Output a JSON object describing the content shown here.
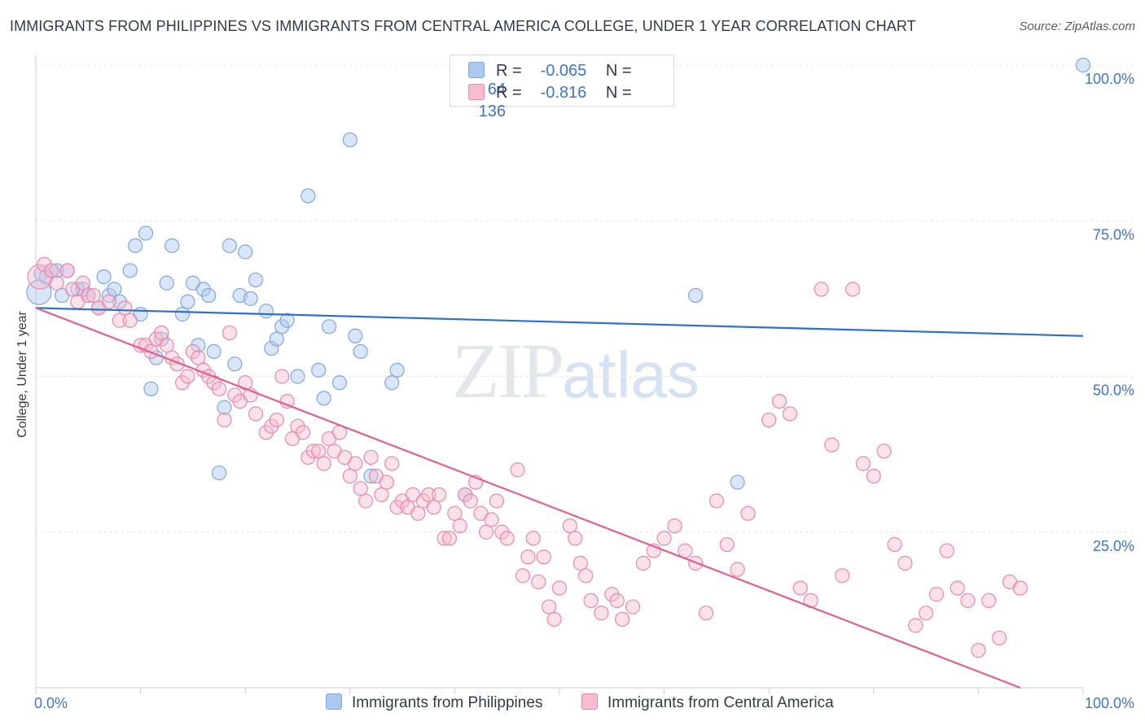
{
  "chart_data": {
    "type": "scatter",
    "title": "IMMIGRANTS FROM PHILIPPINES VS IMMIGRANTS FROM CENTRAL AMERICA COLLEGE, UNDER 1 YEAR CORRELATION CHART",
    "source": "Source: ZipAtlas.com",
    "xlabel": "",
    "ylabel": "College, Under 1 year",
    "xlim": [
      0,
      100
    ],
    "ylim": [
      0,
      100
    ],
    "x_tick_labels": [
      "0.0%",
      "100.0%"
    ],
    "y_tick_labels": [
      "25.0%",
      "50.0%",
      "75.0%",
      "100.0%"
    ],
    "y_ticks": [
      25,
      50,
      75,
      100
    ],
    "grid": true,
    "legend_placement": "bottom-center",
    "watermark": {
      "zip": "ZIP",
      "atlas": "atlas"
    },
    "stats": [
      {
        "r_label": "R =",
        "r_value": "-0.065",
        "n_label": "N =",
        "n_value": "64",
        "color": "#aac8f0"
      },
      {
        "r_label": "R =",
        "r_value": "-0.816",
        "n_label": "N =",
        "n_value": "136",
        "color": "#f7bcd0"
      }
    ],
    "series": [
      {
        "name": "Immigrants from Philippines",
        "color": "#7fa6e0",
        "fill": "#aac8f0",
        "line_color": "#2f6fcf",
        "trend": {
          "x0": 0,
          "y0": 61.0,
          "x1": 100,
          "y1": 56.5
        },
        "points": [
          [
            0.3,
            63.5
          ],
          [
            0.5,
            66.5
          ],
          [
            1,
            66
          ],
          [
            1.5,
            67
          ],
          [
            2,
            67
          ],
          [
            2.5,
            63
          ],
          [
            3,
            67
          ],
          [
            4,
            64
          ],
          [
            4.5,
            64
          ],
          [
            5,
            63
          ],
          [
            6,
            61
          ],
          [
            6.5,
            66
          ],
          [
            7,
            63
          ],
          [
            7.5,
            64
          ],
          [
            8,
            62
          ],
          [
            9,
            67
          ],
          [
            9.5,
            71
          ],
          [
            10,
            60
          ],
          [
            10.5,
            73
          ],
          [
            11,
            48
          ],
          [
            11.5,
            53
          ],
          [
            12,
            56
          ],
          [
            12.5,
            65
          ],
          [
            13,
            71
          ],
          [
            14,
            60
          ],
          [
            14.5,
            62
          ],
          [
            15,
            65
          ],
          [
            15.5,
            55
          ],
          [
            16,
            64
          ],
          [
            16.5,
            63
          ],
          [
            17,
            54
          ],
          [
            17.5,
            34.5
          ],
          [
            18,
            45
          ],
          [
            18.5,
            71
          ],
          [
            19,
            52
          ],
          [
            19.5,
            63
          ],
          [
            20,
            70
          ],
          [
            20.5,
            62.5
          ],
          [
            21,
            65.5
          ],
          [
            22,
            60.5
          ],
          [
            22.5,
            54.5
          ],
          [
            23,
            56
          ],
          [
            23.5,
            58
          ],
          [
            24,
            59
          ],
          [
            25,
            50
          ],
          [
            26,
            79
          ],
          [
            27,
            51
          ],
          [
            27.5,
            46.5
          ],
          [
            28,
            58
          ],
          [
            29,
            49
          ],
          [
            30,
            88
          ],
          [
            30.5,
            56.5
          ],
          [
            31,
            54
          ],
          [
            32,
            34
          ],
          [
            34,
            49
          ],
          [
            34.5,
            51
          ],
          [
            41,
            31
          ],
          [
            63,
            63
          ],
          [
            67,
            33
          ],
          [
            100,
            100
          ]
        ]
      },
      {
        "name": "Immigrants from Central America",
        "color": "#e888a8",
        "fill": "#f7bcd0",
        "line_color": "#e0608e",
        "trend": {
          "x0": 0,
          "y0": 61.0,
          "x1": 94,
          "y1": 0
        },
        "points": [
          [
            0.4,
            66
          ],
          [
            0.8,
            68
          ],
          [
            1.5,
            67
          ],
          [
            2,
            65
          ],
          [
            3,
            67
          ],
          [
            3.5,
            64
          ],
          [
            4,
            62
          ],
          [
            4.5,
            65
          ],
          [
            5,
            63
          ],
          [
            5.5,
            63
          ],
          [
            6,
            61
          ],
          [
            7,
            62
          ],
          [
            8,
            59
          ],
          [
            8.5,
            61
          ],
          [
            9,
            59
          ],
          [
            10,
            55
          ],
          [
            10.5,
            55
          ],
          [
            11,
            54
          ],
          [
            11.5,
            56
          ],
          [
            12,
            57
          ],
          [
            12.5,
            55
          ],
          [
            13,
            53
          ],
          [
            13.5,
            52
          ],
          [
            14,
            49
          ],
          [
            14.5,
            50
          ],
          [
            15,
            54
          ],
          [
            15.5,
            53
          ],
          [
            16,
            51
          ],
          [
            16.5,
            50
          ],
          [
            17,
            49
          ],
          [
            17.5,
            48
          ],
          [
            18,
            43
          ],
          [
            18.5,
            57
          ],
          [
            19,
            47
          ],
          [
            19.5,
            46
          ],
          [
            20,
            49
          ],
          [
            20.5,
            47
          ],
          [
            21,
            44
          ],
          [
            22,
            41
          ],
          [
            22.5,
            42
          ],
          [
            23,
            43
          ],
          [
            23.5,
            50
          ],
          [
            24,
            46
          ],
          [
            24.5,
            40
          ],
          [
            25,
            42
          ],
          [
            25.5,
            41
          ],
          [
            26,
            37
          ],
          [
            26.5,
            38
          ],
          [
            27,
            38
          ],
          [
            27.5,
            36
          ],
          [
            28,
            40
          ],
          [
            28.5,
            38
          ],
          [
            29,
            41
          ],
          [
            29.5,
            37
          ],
          [
            30,
            34
          ],
          [
            30.5,
            36
          ],
          [
            31,
            32
          ],
          [
            31.5,
            30
          ],
          [
            32,
            37
          ],
          [
            32.5,
            34
          ],
          [
            33,
            31
          ],
          [
            33.5,
            33
          ],
          [
            34,
            36
          ],
          [
            34.5,
            29
          ],
          [
            35,
            30
          ],
          [
            35.5,
            29
          ],
          [
            36,
            31
          ],
          [
            36.5,
            28
          ],
          [
            37,
            30
          ],
          [
            37.5,
            31
          ],
          [
            38,
            29
          ],
          [
            38.5,
            31
          ],
          [
            39,
            24
          ],
          [
            39.5,
            24
          ],
          [
            40,
            28
          ],
          [
            40.5,
            26
          ],
          [
            41,
            31
          ],
          [
            41.5,
            30
          ],
          [
            42,
            33
          ],
          [
            42.5,
            28
          ],
          [
            43,
            25
          ],
          [
            43.5,
            27
          ],
          [
            44,
            30
          ],
          [
            44.5,
            25
          ],
          [
            45,
            24
          ],
          [
            46,
            35
          ],
          [
            46.5,
            18
          ],
          [
            47,
            21
          ],
          [
            47.5,
            24
          ],
          [
            48,
            17
          ],
          [
            48.5,
            21
          ],
          [
            49,
            13
          ],
          [
            49.5,
            11
          ],
          [
            50,
            16
          ],
          [
            51,
            26
          ],
          [
            51.5,
            24
          ],
          [
            52,
            20
          ],
          [
            52.5,
            18
          ],
          [
            53,
            14
          ],
          [
            54,
            12
          ],
          [
            55,
            15
          ],
          [
            55.5,
            14
          ],
          [
            56,
            11
          ],
          [
            57,
            13
          ],
          [
            58,
            20
          ],
          [
            59,
            22
          ],
          [
            60,
            24
          ],
          [
            61,
            26
          ],
          [
            62,
            22
          ],
          [
            63,
            20
          ],
          [
            64,
            12
          ],
          [
            65,
            30
          ],
          [
            66,
            23
          ],
          [
            67,
            19
          ],
          [
            68,
            28
          ],
          [
            70,
            43
          ],
          [
            71,
            46
          ],
          [
            72,
            44
          ],
          [
            73,
            16
          ],
          [
            74,
            14
          ],
          [
            75,
            64
          ],
          [
            76,
            39
          ],
          [
            77,
            18
          ],
          [
            78,
            64
          ],
          [
            79,
            36
          ],
          [
            80,
            34
          ],
          [
            81,
            38
          ],
          [
            82,
            23
          ],
          [
            83,
            20
          ],
          [
            84,
            10
          ],
          [
            85,
            12
          ],
          [
            86,
            15
          ],
          [
            87,
            22
          ],
          [
            88,
            16
          ],
          [
            89,
            14
          ],
          [
            90,
            6
          ],
          [
            91,
            14
          ],
          [
            92,
            8
          ],
          [
            93,
            17
          ],
          [
            94,
            16
          ]
        ]
      }
    ]
  }
}
